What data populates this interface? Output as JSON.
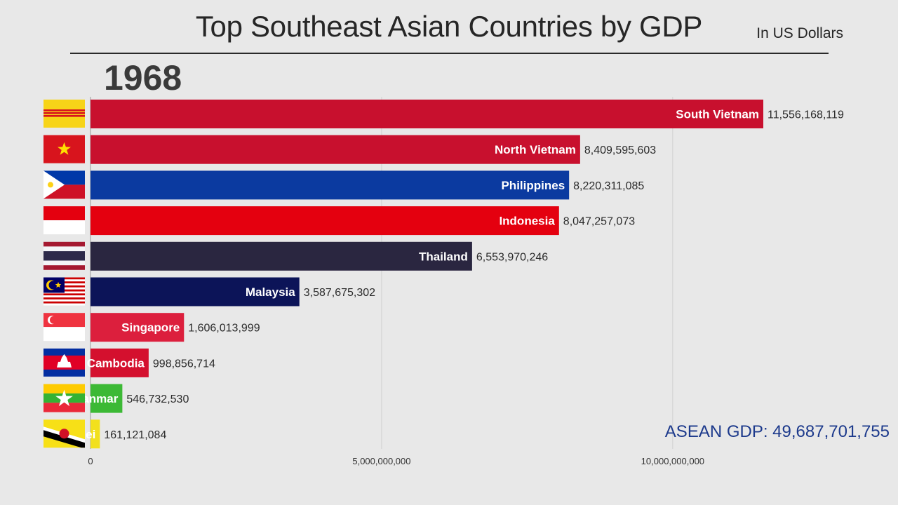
{
  "title": "Top Southeast Asian Countries by GDP",
  "subtitle": "In US Dollars",
  "year": "1968",
  "total_label": "ASEAN GDP: 49,687,701,755",
  "chart_data": {
    "type": "bar",
    "orientation": "horizontal",
    "title": "Top Southeast Asian Countries by GDP",
    "xlim": [
      0,
      11556168119
    ],
    "ticks": [
      0,
      5000000000,
      10000000000
    ],
    "tick_labels": [
      "0",
      "5,000,000,000",
      "10,000,000,000"
    ],
    "grid": true,
    "categories": [
      "South Vietnam",
      "North Vietnam",
      "Philippines",
      "Indonesia",
      "Thailand",
      "Malaysia",
      "Singapore",
      "Cambodia",
      "Myanmar",
      "Brunei"
    ],
    "values": [
      11556168119,
      8409595603,
      8220311085,
      8047257073,
      6553970246,
      3587675302,
      1606013999,
      998856714,
      546732530,
      161121084
    ],
    "value_labels": [
      "11,556,168,119",
      "8,409,595,603",
      "8,220,311,085",
      "8,047,257,073",
      "6,553,970,246",
      "3,587,675,302",
      "1,606,013,999",
      "998,856,714",
      "546,732,530",
      "161,121,084"
    ],
    "colors": [
      "#c8102e",
      "#c8102e",
      "#0b3aa0",
      "#e4000f",
      "#2a2640",
      "#0c1458",
      "#dc1f3d",
      "#d4102e",
      "#3cb935",
      "#f2e01c"
    ],
    "flag_icons": [
      "south-vietnam-flag-icon",
      "north-vietnam-flag-icon",
      "philippines-flag-icon",
      "indonesia-flag-icon",
      "thailand-flag-icon",
      "malaysia-flag-icon",
      "singapore-flag-icon",
      "cambodia-flag-icon",
      "myanmar-flag-icon",
      "brunei-flag-icon"
    ]
  }
}
